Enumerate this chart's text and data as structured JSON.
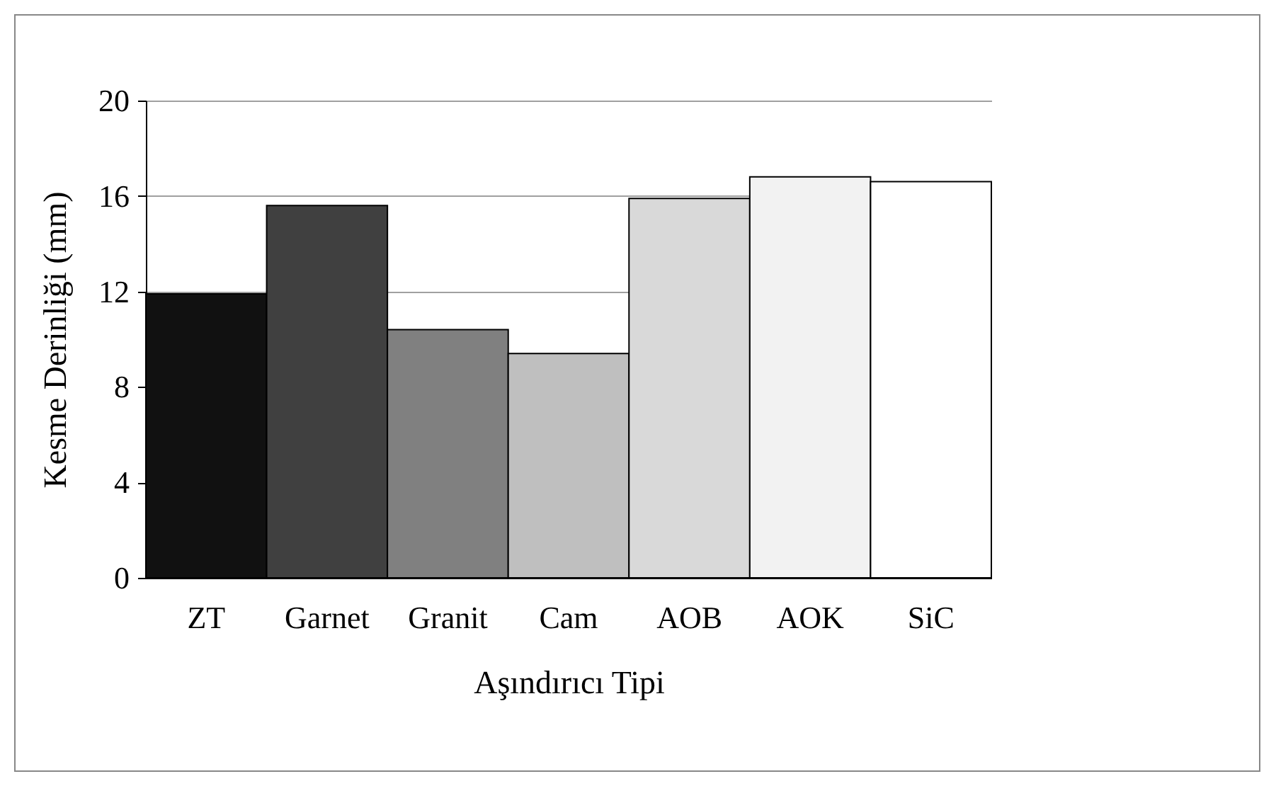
{
  "chart_data": {
    "type": "bar",
    "xlabel": "Aşındırıcı Tipi",
    "ylabel": "Kesme Derinliği (mm)",
    "categories": [
      "ZT",
      "Garnet",
      "Granit",
      "Cam",
      "AOB",
      "AOK",
      "SiC"
    ],
    "values": [
      11.9,
      15.6,
      10.4,
      9.4,
      15.9,
      16.8,
      16.6
    ],
    "colors": [
      "#111111",
      "#404040",
      "#808080",
      "#bfbfbf",
      "#d9d9d9",
      "#f2f2f2",
      "#ffffff"
    ],
    "ylim": [
      0,
      20
    ],
    "yticks": [
      0,
      4,
      8,
      12,
      16,
      20
    ],
    "grid": "y"
  }
}
